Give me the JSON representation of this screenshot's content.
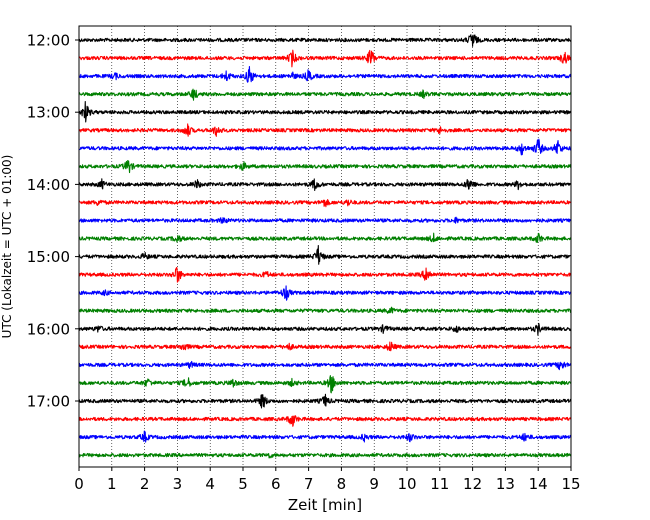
{
  "chart_data": {
    "type": "line",
    "subtype": "seismogram-helicorder",
    "xlabel": "Zeit  [min]",
    "ylabel": "UTC (Lokalzeit = UTC + 01:00)",
    "xlim": [
      0,
      15
    ],
    "x_ticks": [
      "0",
      "1",
      "2",
      "3",
      "4",
      "5",
      "6",
      "7",
      "8",
      "9",
      "10",
      "11",
      "12",
      "13",
      "14",
      "15"
    ],
    "y_tick_labels": [
      "12:00",
      "13:00",
      "14:00",
      "15:00",
      "16:00",
      "17:00"
    ],
    "y_tick_trace_index": [
      0,
      4,
      8,
      12,
      16,
      20
    ],
    "colors": [
      "#000000",
      "#ff0000",
      "#0000ff",
      "#008000"
    ],
    "grid": "vertical dotted at each minute",
    "traces": [
      {
        "start": "12:00",
        "color": "#000000",
        "events": [
          [
            12.0,
            1.0
          ]
        ]
      },
      {
        "start": "12:15",
        "color": "#ff0000",
        "events": [
          [
            6.5,
            0.8
          ],
          [
            8.9,
            1.0
          ],
          [
            14.8,
            0.7
          ]
        ]
      },
      {
        "start": "12:30",
        "color": "#0000ff",
        "events": [
          [
            1.1,
            0.3
          ],
          [
            4.5,
            0.5
          ],
          [
            5.2,
            1.0
          ],
          [
            7.0,
            0.6
          ],
          [
            6.5,
            0.3
          ]
        ]
      },
      {
        "start": "12:45",
        "color": "#008000",
        "events": [
          [
            3.5,
            0.6
          ],
          [
            10.5,
            0.3
          ]
        ]
      },
      {
        "start": "13:00",
        "color": "#000000",
        "events": [
          [
            0.2,
            1.0
          ]
        ]
      },
      {
        "start": "13:15",
        "color": "#ff0000",
        "events": [
          [
            3.3,
            0.7
          ],
          [
            4.2,
            0.6
          ],
          [
            11.0,
            0.3
          ]
        ]
      },
      {
        "start": "13:30",
        "color": "#0000ff",
        "events": [
          [
            13.5,
            0.6
          ],
          [
            14.0,
            1.0
          ],
          [
            14.6,
            0.8
          ]
        ]
      },
      {
        "start": "13:45",
        "color": "#008000",
        "events": [
          [
            1.5,
            0.8
          ],
          [
            5.0,
            0.4
          ]
        ]
      },
      {
        "start": "14:00",
        "color": "#000000",
        "events": [
          [
            0.7,
            0.4
          ],
          [
            3.6,
            0.4
          ],
          [
            7.2,
            0.6
          ],
          [
            11.9,
            0.7
          ],
          [
            13.4,
            0.4
          ]
        ]
      },
      {
        "start": "14:15",
        "color": "#ff0000",
        "events": [
          [
            0.6,
            0.3
          ],
          [
            7.5,
            0.4
          ],
          [
            8.2,
            0.3
          ]
        ]
      },
      {
        "start": "14:30",
        "color": "#0000ff",
        "events": [
          [
            4.4,
            0.3
          ],
          [
            11.5,
            0.2
          ]
        ]
      },
      {
        "start": "14:45",
        "color": "#008000",
        "events": [
          [
            3.0,
            0.4
          ],
          [
            10.8,
            0.4
          ],
          [
            14.0,
            0.5
          ]
        ]
      },
      {
        "start": "15:00",
        "color": "#000000",
        "events": [
          [
            7.3,
            1.0
          ],
          [
            2.0,
            0.3
          ]
        ]
      },
      {
        "start": "15:15",
        "color": "#ff0000",
        "events": [
          [
            3.0,
            0.9
          ],
          [
            10.6,
            0.9
          ],
          [
            5.7,
            0.3
          ]
        ]
      },
      {
        "start": "15:30",
        "color": "#0000ff",
        "events": [
          [
            6.3,
            0.8
          ],
          [
            0.8,
            0.2
          ]
        ]
      },
      {
        "start": "15:45",
        "color": "#008000",
        "events": [
          [
            9.5,
            0.3
          ]
        ]
      },
      {
        "start": "16:00",
        "color": "#000000",
        "events": [
          [
            0.6,
            0.3
          ],
          [
            9.3,
            0.4
          ],
          [
            14.0,
            0.5
          ],
          [
            11.5,
            0.3
          ]
        ]
      },
      {
        "start": "16:15",
        "color": "#ff0000",
        "events": [
          [
            3.2,
            0.4
          ],
          [
            9.5,
            0.5
          ],
          [
            6.4,
            0.3
          ]
        ]
      },
      {
        "start": "16:30",
        "color": "#0000ff",
        "events": [
          [
            14.7,
            0.6
          ],
          [
            3.4,
            0.3
          ]
        ]
      },
      {
        "start": "16:45",
        "color": "#008000",
        "events": [
          [
            2.1,
            0.4
          ],
          [
            3.3,
            0.6
          ],
          [
            4.7,
            0.4
          ],
          [
            6.5,
            0.3
          ],
          [
            7.7,
            1.0
          ]
        ]
      },
      {
        "start": "17:00",
        "color": "#000000",
        "events": [
          [
            5.6,
            0.8
          ],
          [
            7.5,
            0.6
          ]
        ]
      },
      {
        "start": "17:15",
        "color": "#ff0000",
        "events": [
          [
            6.5,
            0.8
          ]
        ]
      },
      {
        "start": "17:30",
        "color": "#0000ff",
        "events": [
          [
            2.0,
            0.5
          ],
          [
            10.1,
            0.4
          ],
          [
            13.6,
            0.4
          ],
          [
            8.7,
            0.3
          ]
        ]
      },
      {
        "start": "17:45",
        "color": "#008000",
        "events": [
          [
            5.8,
            0.2
          ]
        ]
      }
    ]
  }
}
